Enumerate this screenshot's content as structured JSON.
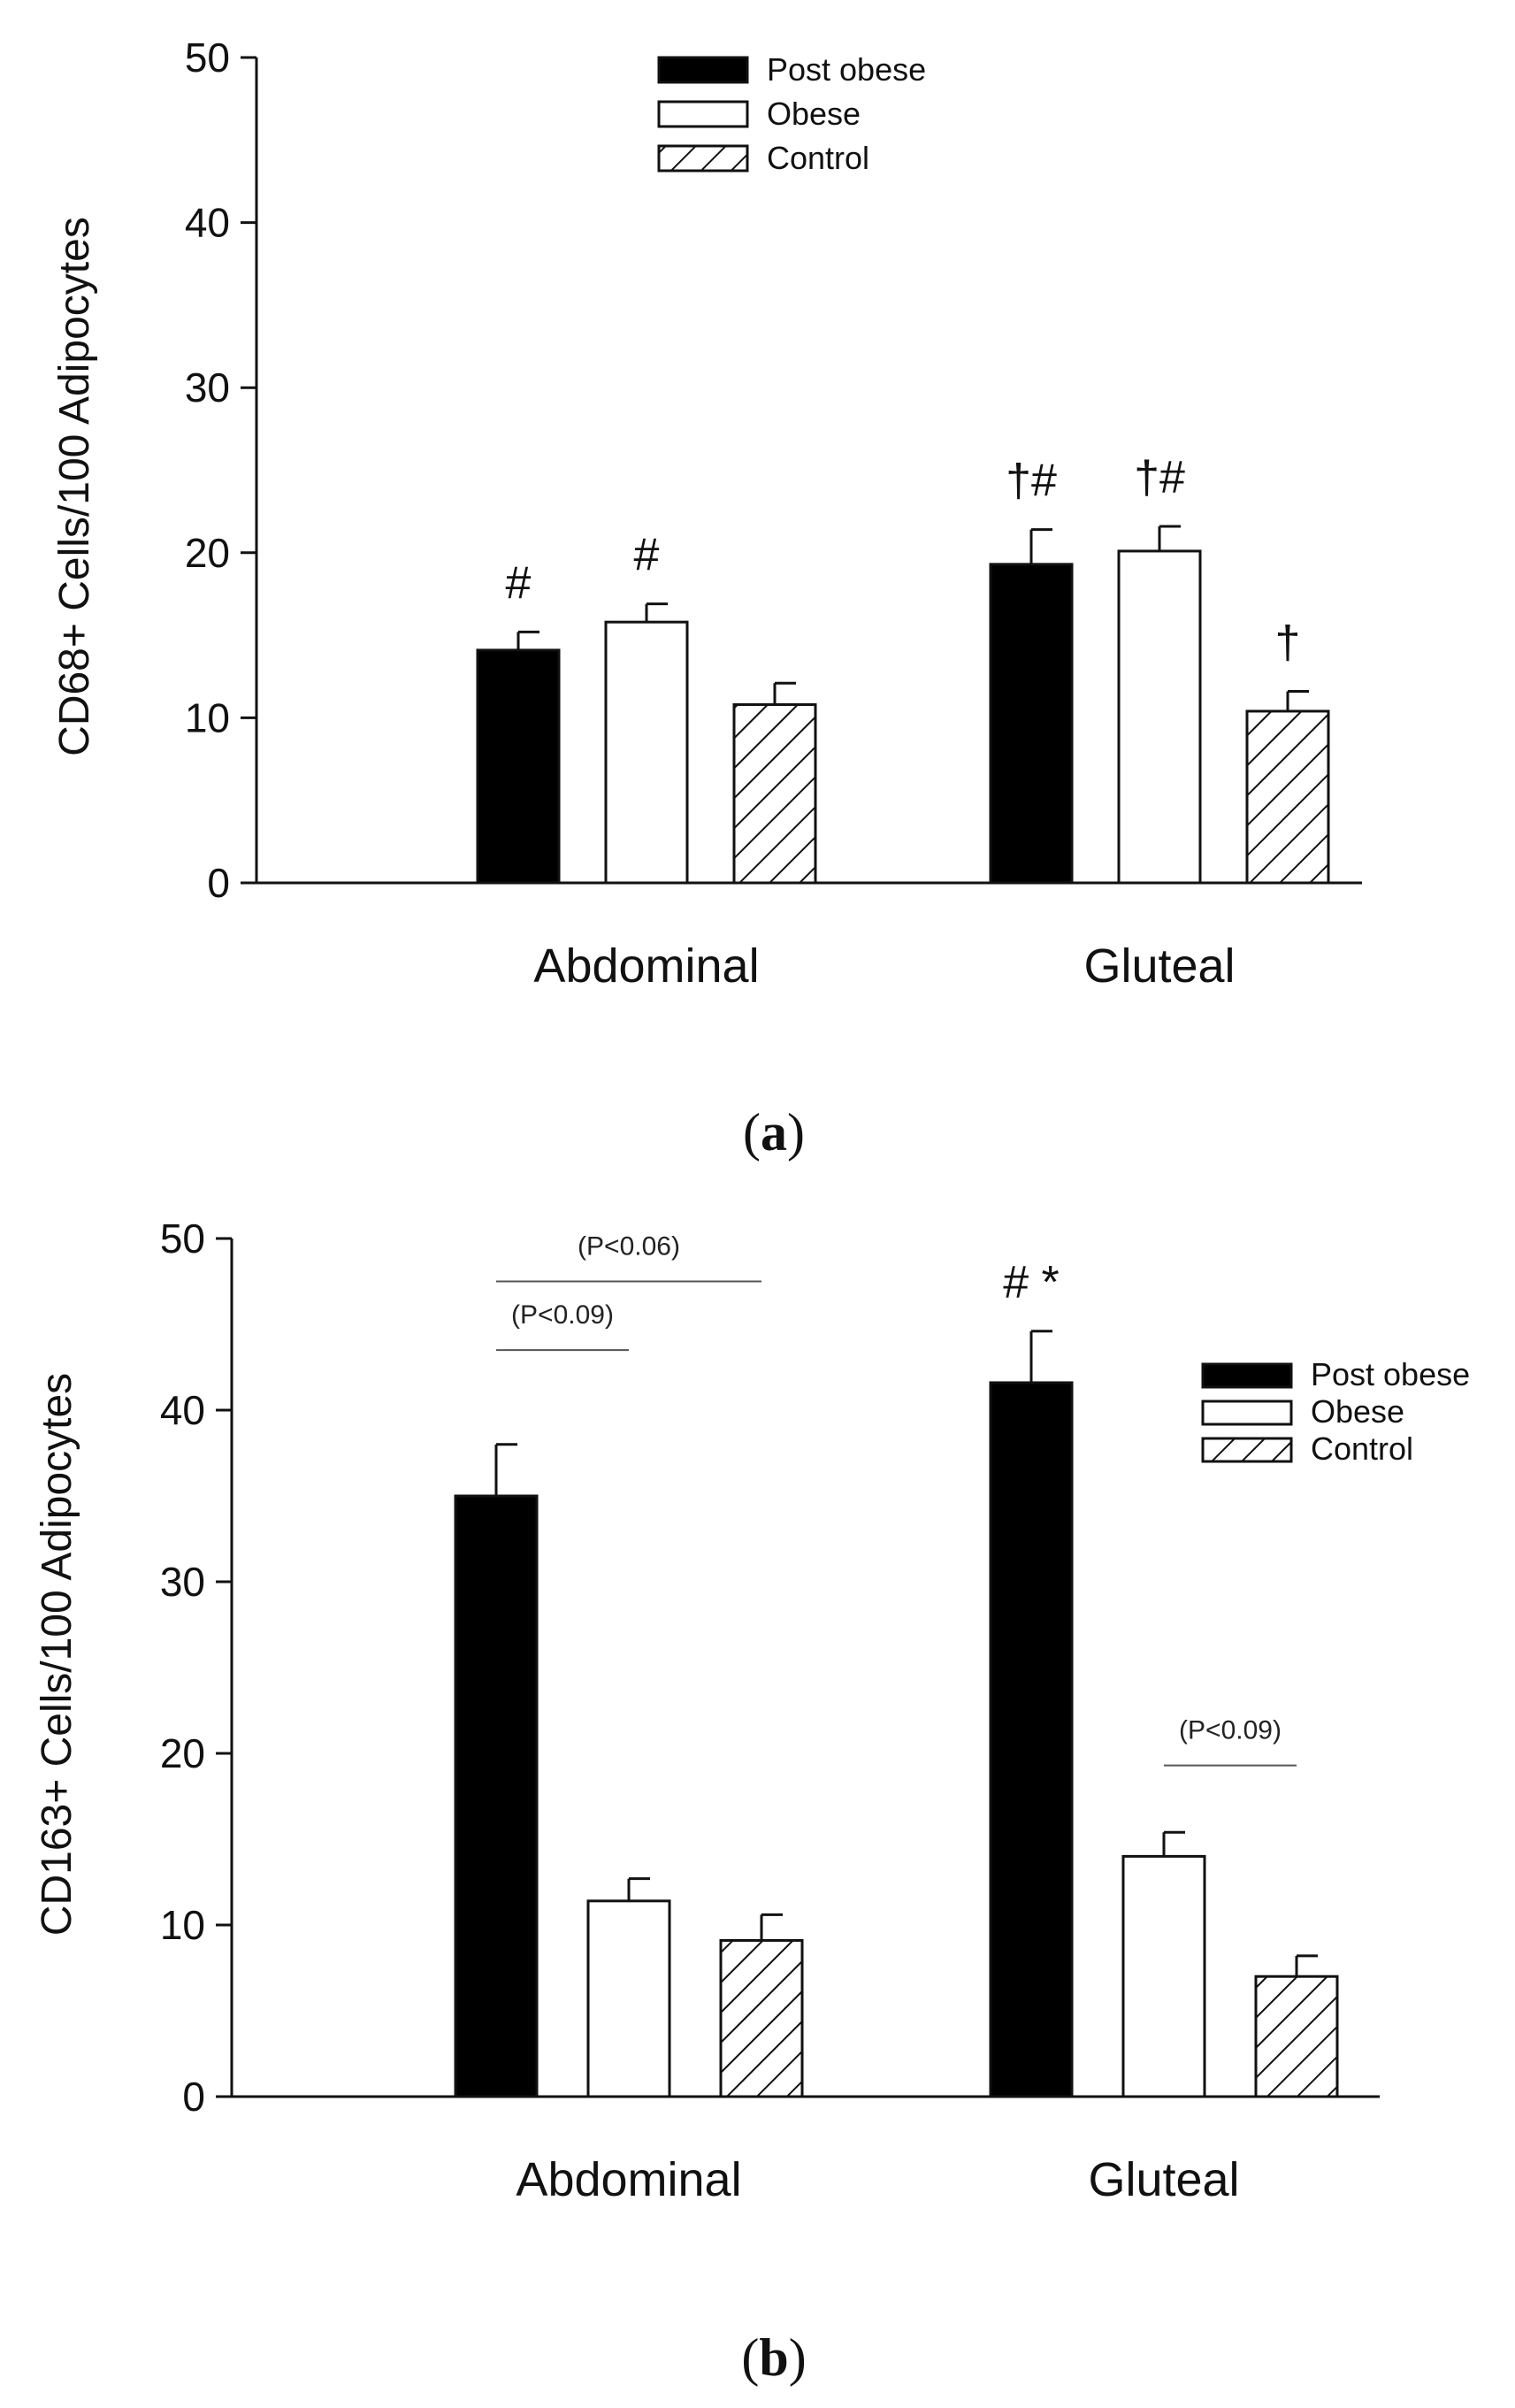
{
  "chart_data": [
    {
      "type": "bar",
      "panel": "(a)",
      "panel_letter": "a",
      "ylabel": "CD68+ Cells/100 Adipocytes",
      "xlabel": "",
      "ylim": [
        0,
        50
      ],
      "yticks": [
        "0",
        "10",
        "20",
        "30",
        "40",
        "50"
      ],
      "categories": [
        "Abdominal",
        "Gluteal"
      ],
      "legend_position": "top-center",
      "series": [
        {
          "name": "Post obese",
          "fill": "solid",
          "values": [
            14.1,
            19.3
          ],
          "errors": [
            1.1,
            2.1
          ],
          "annotations": [
            "#",
            "†#"
          ]
        },
        {
          "name": "Obese",
          "fill": "hollow",
          "values": [
            15.8,
            20.1
          ],
          "errors": [
            1.1,
            1.5
          ],
          "annotations": [
            "#",
            "†#"
          ]
        },
        {
          "name": "Control",
          "fill": "hatched",
          "values": [
            10.8,
            10.4
          ],
          "errors": [
            1.3,
            1.2
          ],
          "annotations": [
            "",
            "†"
          ]
        }
      ],
      "comparisons": []
    },
    {
      "type": "bar",
      "panel": "(b)",
      "panel_letter": "b",
      "ylabel": "CD163+ Cells/100 Adipocytes",
      "xlabel": "",
      "ylim": [
        0,
        50
      ],
      "yticks": [
        "0",
        "10",
        "20",
        "30",
        "40",
        "50"
      ],
      "categories": [
        "Abdominal",
        "Gluteal"
      ],
      "legend_position": "upper-right",
      "series": [
        {
          "name": "Post obese",
          "fill": "solid",
          "values": [
            35.0,
            41.6
          ],
          "errors": [
            3.0,
            3.0
          ],
          "annotations": [
            "",
            "# *"
          ]
        },
        {
          "name": "Obese",
          "fill": "hollow",
          "values": [
            11.4,
            14.0
          ],
          "errors": [
            1.3,
            1.4
          ],
          "annotations": [
            "",
            ""
          ]
        },
        {
          "name": "Control",
          "fill": "hatched",
          "values": [
            9.1,
            7.0
          ],
          "errors": [
            1.5,
            1.2
          ],
          "annotations": [
            "",
            ""
          ]
        }
      ],
      "comparisons": [
        {
          "label": "(P<0.06)",
          "category": 0,
          "from_series": 0,
          "to_series": 2,
          "level": 47.5
        },
        {
          "label": "(P<0.09)",
          "category": 0,
          "from_series": 0,
          "to_series": 1,
          "level": 43.5
        },
        {
          "label": "(P<0.09)",
          "category": 1,
          "from_series": 1,
          "to_series": 2,
          "level": 19.3
        }
      ]
    }
  ]
}
